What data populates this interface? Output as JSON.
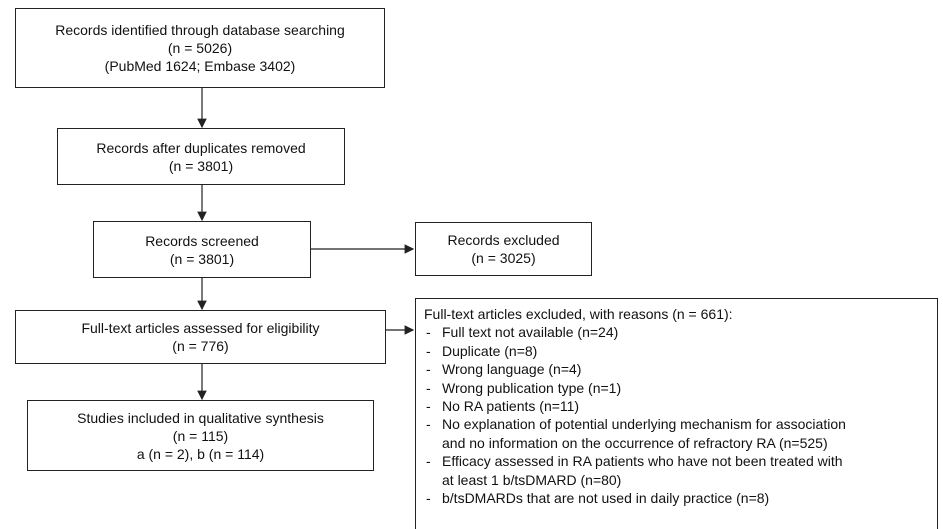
{
  "nodes": [
    {
      "lines": [
        "Records identified through database searching",
        "(n = 5026)",
        "(PubMed 1624; Embase 3402)"
      ]
    },
    {
      "lines": [
        "Records after duplicates removed",
        "(n = 3801)"
      ]
    },
    {
      "lines": [
        "Records screened",
        "(n = 3801)"
      ]
    },
    {
      "lines": [
        "Full-text articles assessed for eligibility",
        "(n = 776)"
      ]
    },
    {
      "lines": [
        "Studies included in qualitative synthesis",
        "(n = 115)",
        "a (n = 2), b (n = 114)"
      ]
    }
  ],
  "excluded": {
    "lines": [
      "Records excluded",
      "(n = 3025)"
    ]
  },
  "excluded_fulltext": {
    "title": "Full-text articles excluded, with reasons (n = 661):",
    "items": [
      [
        "Full text not available (n=24)"
      ],
      [
        "Duplicate (n=8)"
      ],
      [
        "Wrong language (n=4)"
      ],
      [
        "Wrong publication type (n=1)"
      ],
      [
        "No RA patients (n=11)"
      ],
      [
        "No explanation of potential underlying mechanism for association",
        "and no information on the occurrence of refractory RA (n=525)"
      ],
      [
        "Efficacy assessed in RA patients who have not been treated with",
        "at least 1 b/tsDMARD (n=80)"
      ],
      [
        "b/tsDMARDs that are not used in daily practice (n=8)"
      ]
    ]
  }
}
